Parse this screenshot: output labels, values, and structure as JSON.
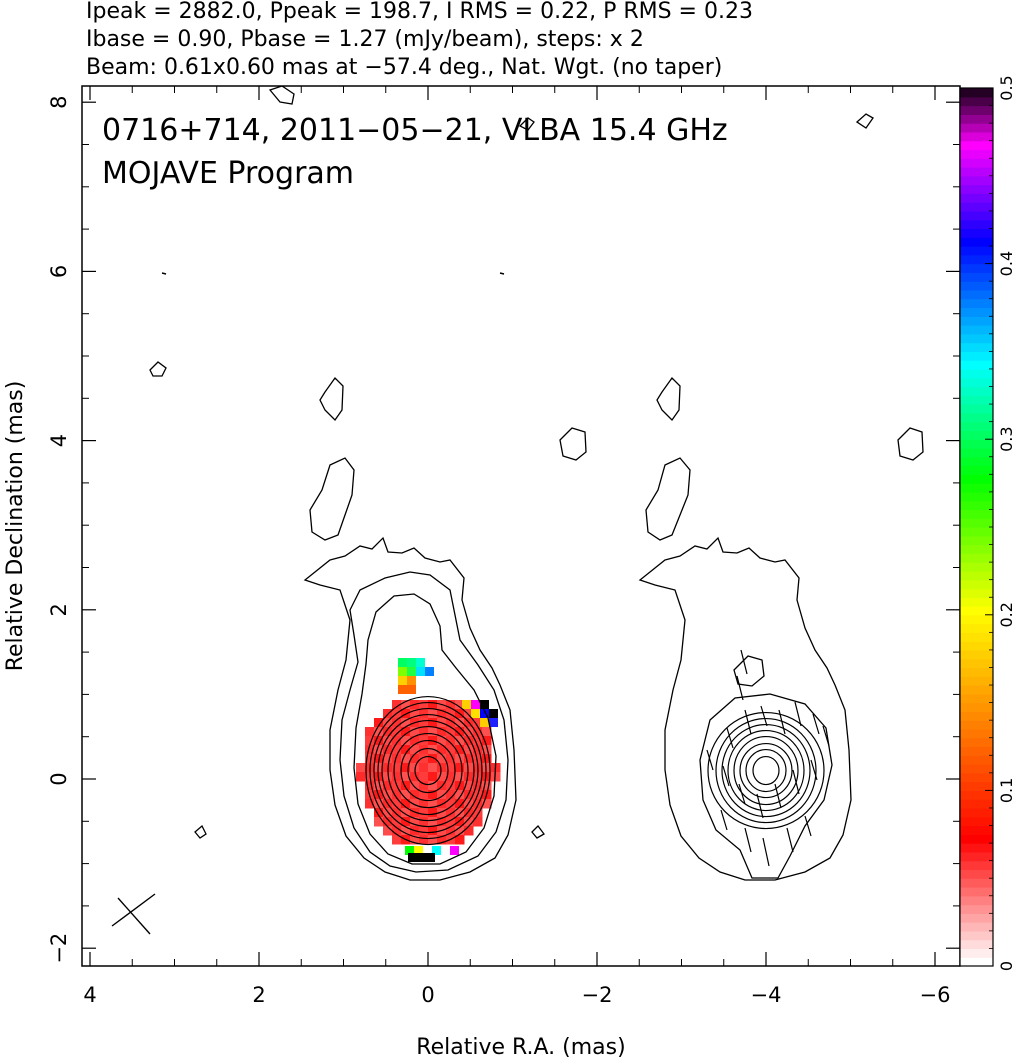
{
  "header": {
    "line1": "Ipeak = 2882.0, Ppeak = 198.7, I RMS = 0.22, P RMS = 0.23",
    "line2": "Ibase = 0.90, Pbase = 1.27 (mJy/beam), steps: x 2",
    "line3": "Beam: 0.61x0.60 mas at −57.4 deg., Nat. Wgt. (no taper)"
  },
  "annotation": {
    "line1": "0716+714, 2011−05−21, VLBA 15.4 GHz",
    "line2": "MOJAVE Program"
  },
  "chart_data": {
    "type": "heatmap",
    "xlabel": "Relative R.A. (mas)",
    "ylabel": "Relative Declination (mas)",
    "xlim": [
      4.1,
      -6.3
    ],
    "ylim": [
      -2.2,
      8.3
    ],
    "xticks": [
      4,
      2,
      0,
      -2,
      -4,
      -6
    ],
    "xtick_labels": [
      "4",
      "2",
      "0",
      "−2",
      "−4",
      "−6"
    ],
    "yticks": [
      -2,
      0,
      2,
      4,
      6,
      8
    ],
    "ytick_labels": [
      "−2",
      "0",
      "2",
      "4",
      "6",
      "8"
    ],
    "colorbar": {
      "range": [
        0,
        0.5
      ],
      "ticks": [
        0,
        0.1,
        0.2,
        0.3,
        0.4,
        0.5
      ],
      "tick_labels": [
        "0",
        "0.1",
        "0.2",
        "0.3",
        "0.4",
        "0.5"
      ],
      "colors": [
        "#ffffff",
        "#ff0000",
        "#ff8000",
        "#ffff00",
        "#00ff00",
        "#00ffff",
        "#0000ff",
        "#ff00ff",
        "#000000"
      ]
    },
    "core": {
      "ra": 0,
      "dec": 0.1
    },
    "polarization_core": {
      "ra": -4.0,
      "dec": 0.1
    }
  }
}
